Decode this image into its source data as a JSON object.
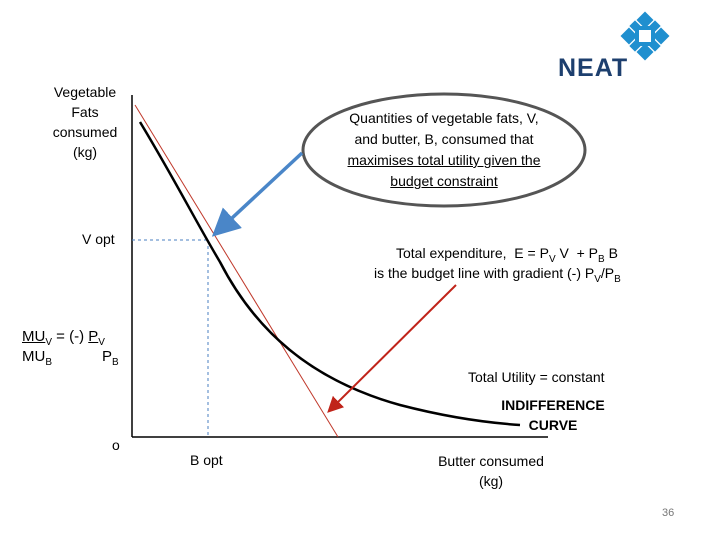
{
  "brand": {
    "name": "NEAT",
    "logo_icon": "neat-diamond-logo-icon",
    "logo_color": "#1f8fcf"
  },
  "axes": {
    "y_label_lines": [
      "Vegetable",
      "Fats",
      "consumed",
      "(kg)"
    ],
    "x_label_lines": [
      "Butter consumed",
      "(kg)"
    ],
    "origin_label": "o",
    "v_opt_label": "V opt",
    "b_opt_label": "B opt"
  },
  "callout": {
    "lines": [
      "Quantities of vegetable fats, V,",
      "and butter, B, consumed that",
      "maximises total utility given the",
      "budget constraint"
    ]
  },
  "budget_note": {
    "line1": {
      "prefix": "Total expenditure,  E = P",
      "sub1": "V",
      "mid": " V  + P",
      "sub2": "B",
      "suffix": " B"
    },
    "line2": {
      "prefix": "is the budget line with gradient (-) P",
      "sub1": "V",
      "mid": "/P",
      "sub2": "B"
    }
  },
  "utility_note": {
    "line": "Total Utility = constant",
    "curve_lines": [
      "INDIFFERENCE",
      "CURVE"
    ]
  },
  "mu_ratio": {
    "top_mu": "MU",
    "top_mu_sub": "V",
    "equals": " = (-) ",
    "top_p": "P",
    "top_p_sub": "V",
    "bottom_mu": "MU",
    "bottom_mu_sub": "B",
    "bottom_p": "P",
    "bottom_p_sub": "B"
  },
  "slide_number": "36",
  "colors": {
    "axis": "#000000",
    "budget_line": "#c0392b",
    "indifference_curve": "#000000",
    "dashed_guides": "#4a7fc1",
    "blue_arrow": "#4a86c8",
    "red_arrow": "#c0241a",
    "callout_fill": "#ffffff",
    "callout_stroke": "#555555"
  }
}
